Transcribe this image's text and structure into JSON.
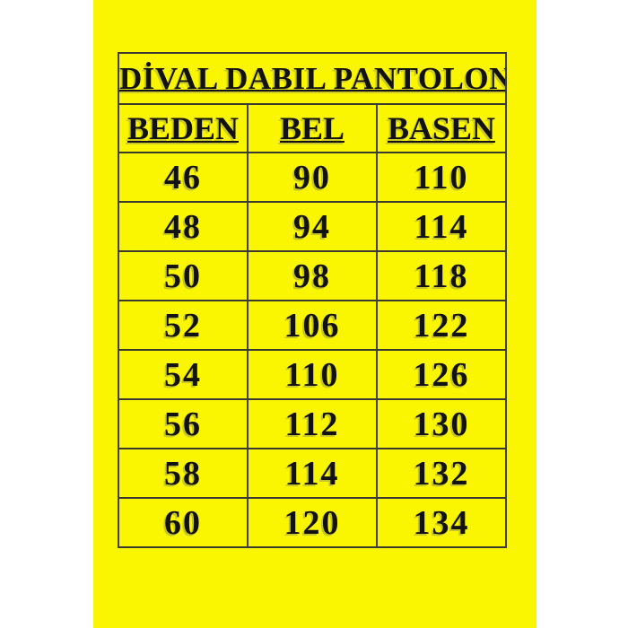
{
  "title": "DİVAL DABIL PANTOLON",
  "colors": {
    "poster_background": "#FAF500",
    "page_background": "#FFFFFF",
    "grid_line": "#3A3A2E",
    "text": "#121212"
  },
  "chart_data": {
    "type": "table",
    "title": "DİVAL DABIL PANTOLON",
    "columns": [
      "BEDEN",
      "BEL",
      "BASEN"
    ],
    "rows": [
      [
        46,
        90,
        110
      ],
      [
        48,
        94,
        114
      ],
      [
        50,
        98,
        118
      ],
      [
        52,
        106,
        122
      ],
      [
        54,
        110,
        126
      ],
      [
        56,
        112,
        130
      ],
      [
        58,
        114,
        132
      ],
      [
        60,
        120,
        134
      ]
    ],
    "layout_hints": {
      "grid": true,
      "title_row_spans_all_columns": true,
      "columns_equal_width": true
    }
  }
}
